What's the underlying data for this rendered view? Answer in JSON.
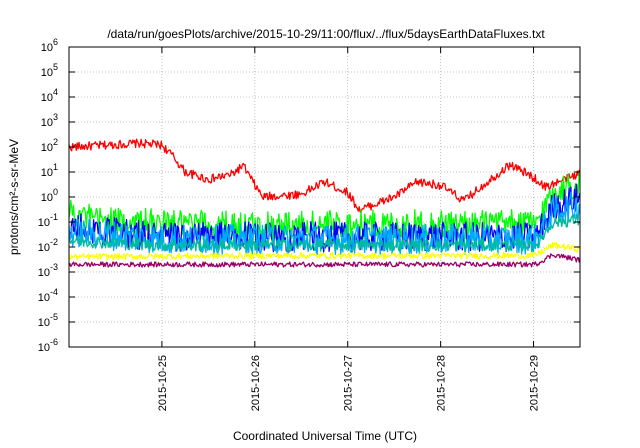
{
  "chart_data": {
    "type": "line",
    "title": "/data/run/goesPlots/archive/2015-10-29/11:00/flux/../flux/5daysEarthDataFluxes.txt",
    "xlabel": "Coordinated Universal Time (UTC)",
    "ylabel": "protons/cm²-s-sr-MeV",
    "yscale": "log",
    "grid": true,
    "ylim": [
      1e-06,
      1000000.0
    ],
    "xlim": [
      "2015-10-24 00:00",
      "2015-10-29 12:00"
    ],
    "y_ticks": [
      {
        "base": "10",
        "exp": "-6",
        "value": 1e-06
      },
      {
        "base": "10",
        "exp": "-5",
        "value": 1e-05
      },
      {
        "base": "10",
        "exp": "-4",
        "value": 0.0001
      },
      {
        "base": "10",
        "exp": "-3",
        "value": 0.001
      },
      {
        "base": "10",
        "exp": "-2",
        "value": 0.01
      },
      {
        "base": "10",
        "exp": "-1",
        "value": 0.1
      },
      {
        "base": "10",
        "exp": "0",
        "value": 1
      },
      {
        "base": "10",
        "exp": "1",
        "value": 10
      },
      {
        "base": "10",
        "exp": "2",
        "value": 100
      },
      {
        "base": "10",
        "exp": "3",
        "value": 1000
      },
      {
        "base": "10",
        "exp": "4",
        "value": 10000
      },
      {
        "base": "10",
        "exp": "5",
        "value": 100000
      },
      {
        "base": "10",
        "exp": "6",
        "value": 1000000
      }
    ],
    "x_ticks": [
      "2015-10-25",
      "2015-10-26",
      "2015-10-27",
      "2015-10-28",
      "2015-10-29"
    ],
    "series": [
      {
        "color": "#ff0000",
        "noise": 0.35,
        "points": [
          [
            "2015-10-24 00:00",
            100
          ],
          [
            "2015-10-24 06:00",
            110
          ],
          [
            "2015-10-24 12:00",
            125
          ],
          [
            "2015-10-24 18:00",
            140
          ],
          [
            "2015-10-25 00:00",
            120
          ],
          [
            "2015-10-25 03:00",
            40
          ],
          [
            "2015-10-25 06:00",
            10
          ],
          [
            "2015-10-25 12:00",
            5
          ],
          [
            "2015-10-25 18:00",
            8
          ],
          [
            "2015-10-25 21:00",
            18
          ],
          [
            "2015-10-26 00:00",
            3
          ],
          [
            "2015-10-26 02:00",
            1
          ],
          [
            "2015-10-26 12:00",
            1.3
          ],
          [
            "2015-10-26 18:00",
            4
          ],
          [
            "2015-10-27 00:00",
            1.5
          ],
          [
            "2015-10-27 03:00",
            0.3
          ],
          [
            "2015-10-27 12:00",
            1
          ],
          [
            "2015-10-27 18:00",
            4
          ],
          [
            "2015-10-28 00:00",
            3
          ],
          [
            "2015-10-28 06:00",
            0.7
          ],
          [
            "2015-10-28 12:00",
            4
          ],
          [
            "2015-10-28 18:00",
            20
          ],
          [
            "2015-10-29 00:00",
            6
          ],
          [
            "2015-10-29 03:00",
            2.5
          ],
          [
            "2015-10-29 08:00",
            5
          ],
          [
            "2015-10-29 12:00",
            9
          ]
        ]
      },
      {
        "color": "#00ff00",
        "noise": 1.2,
        "points": [
          [
            "2015-10-24 00:00",
            0.35
          ],
          [
            "2015-10-24 06:00",
            0.12
          ],
          [
            "2015-10-25 00:00",
            0.08
          ],
          [
            "2015-10-26 00:00",
            0.07
          ],
          [
            "2015-10-27 00:00",
            0.08
          ],
          [
            "2015-10-28 00:00",
            0.08
          ],
          [
            "2015-10-29 00:00",
            0.08
          ],
          [
            "2015-10-29 01:00",
            0.1
          ],
          [
            "2015-10-29 05:00",
            1.5
          ],
          [
            "2015-10-29 12:00",
            3.5
          ]
        ]
      },
      {
        "color": "#0000ff",
        "noise": 1.2,
        "points": [
          [
            "2015-10-24 00:00",
            0.06
          ],
          [
            "2015-10-25 00:00",
            0.025
          ],
          [
            "2015-10-26 00:00",
            0.025
          ],
          [
            "2015-10-27 00:00",
            0.025
          ],
          [
            "2015-10-28 00:00",
            0.025
          ],
          [
            "2015-10-29 00:00",
            0.025
          ],
          [
            "2015-10-29 01:00",
            0.03
          ],
          [
            "2015-10-29 05:00",
            0.4
          ],
          [
            "2015-10-29 12:00",
            1
          ]
        ]
      },
      {
        "color": "#00aaff",
        "noise": 1.2,
        "points": [
          [
            "2015-10-24 00:00",
            0.04
          ],
          [
            "2015-10-25 00:00",
            0.02
          ],
          [
            "2015-10-27 00:00",
            0.02
          ],
          [
            "2015-10-29 00:00",
            0.02
          ],
          [
            "2015-10-29 01:00",
            0.025
          ],
          [
            "2015-10-29 05:00",
            0.25
          ],
          [
            "2015-10-29 12:00",
            0.5
          ]
        ]
      },
      {
        "color": "#00bb99",
        "noise": 0.5,
        "points": [
          [
            "2015-10-24 00:00",
            0.018
          ],
          [
            "2015-10-25 00:00",
            0.012
          ],
          [
            "2015-10-27 00:00",
            0.012
          ],
          [
            "2015-10-29 00:00",
            0.012
          ],
          [
            "2015-10-29 01:00",
            0.015
          ],
          [
            "2015-10-29 05:00",
            0.1
          ],
          [
            "2015-10-29 12:00",
            0.12
          ]
        ]
      },
      {
        "color": "#ffff00",
        "noise": 0.25,
        "points": [
          [
            "2015-10-24 00:00",
            0.004
          ],
          [
            "2015-10-26 00:00",
            0.0045
          ],
          [
            "2015-10-28 00:00",
            0.0045
          ],
          [
            "2015-10-29 00:00",
            0.0045
          ],
          [
            "2015-10-29 01:00",
            0.005
          ],
          [
            "2015-10-29 05:00",
            0.012
          ],
          [
            "2015-10-29 12:00",
            0.008
          ]
        ]
      },
      {
        "color": "#990066",
        "noise": 0.2,
        "points": [
          [
            "2015-10-24 00:00",
            0.002
          ],
          [
            "2015-10-26 00:00",
            0.002
          ],
          [
            "2015-10-28 00:00",
            0.002
          ],
          [
            "2015-10-29 00:00",
            0.002
          ],
          [
            "2015-10-29 01:00",
            0.0022
          ],
          [
            "2015-10-29 05:00",
            0.005
          ],
          [
            "2015-10-29 12:00",
            0.003
          ]
        ]
      }
    ]
  }
}
